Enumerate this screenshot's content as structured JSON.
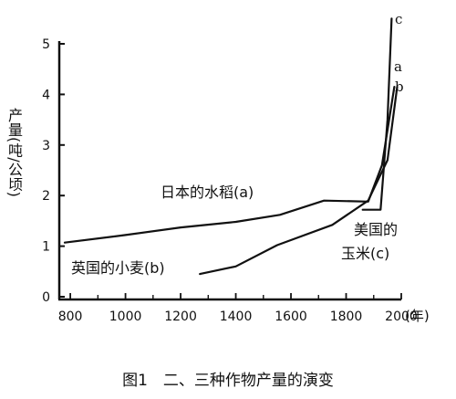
{
  "chart_data": {
    "type": "line",
    "title": "图1　二、三种作物产量的演变",
    "xlabel": "(年)",
    "ylabel": "产量(吨/公顷)",
    "xlim": [
      760,
      2000
    ],
    "ylim": [
      0,
      5.5
    ],
    "x_ticks": [
      "800",
      "1000",
      "1200",
      "1400",
      "1600",
      "1800",
      "2000"
    ],
    "y_ticks": [
      "0",
      "1",
      "2",
      "3",
      "4",
      "5"
    ],
    "grid": false,
    "series": [
      {
        "name": "日本的水稻(a)",
        "letter": "a",
        "points": [
          [
            780,
            1.07
          ],
          [
            1000,
            1.22
          ],
          [
            1200,
            1.37
          ],
          [
            1400,
            1.48
          ],
          [
            1560,
            1.62
          ],
          [
            1720,
            1.9
          ],
          [
            1880,
            1.88
          ],
          [
            1930,
            2.6
          ],
          [
            1975,
            4.15
          ]
        ]
      },
      {
        "name": "英国的小麦(b)",
        "letter": "b",
        "points": [
          [
            1270,
            0.45
          ],
          [
            1400,
            0.6
          ],
          [
            1550,
            1.02
          ],
          [
            1750,
            1.42
          ],
          [
            1880,
            1.9
          ],
          [
            1950,
            2.7
          ],
          [
            1985,
            4.15
          ]
        ]
      },
      {
        "name": "美国的玉米(c)",
        "letter": "c",
        "points": [
          [
            1860,
            1.72
          ],
          [
            1925,
            1.72
          ],
          [
            1950,
            3.5
          ],
          [
            1965,
            5.5
          ]
        ]
      }
    ]
  }
}
